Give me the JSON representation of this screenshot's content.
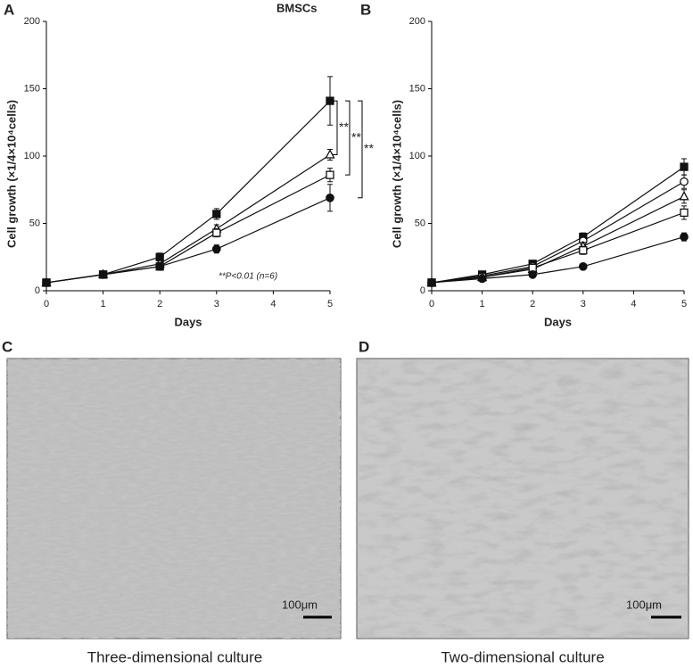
{
  "chart_data": [
    {
      "type": "line",
      "panel_label": "A",
      "title": "BMSCs",
      "x_label": "Days",
      "y_label": "Cell growth (×1/4×10⁴cells)",
      "x": [
        0,
        1,
        2,
        3,
        5
      ],
      "xlim": [
        0,
        5
      ],
      "xticks": [
        0,
        1,
        2,
        3,
        4,
        5
      ],
      "ylim": [
        0,
        200
      ],
      "yticks": [
        0,
        50,
        100,
        150,
        200
      ],
      "series": [
        {
          "marker": "square-filled",
          "color": "#111111",
          "values": [
            6,
            12,
            25,
            57,
            141
          ],
          "errors": [
            1,
            1,
            3,
            4,
            18
          ]
        },
        {
          "marker": "triangle-open",
          "color": "#111111",
          "values": [
            6,
            12,
            20,
            46,
            101
          ],
          "errors": [
            1,
            1,
            2,
            3,
            4
          ]
        },
        {
          "marker": "square-open",
          "color": "#111111",
          "values": [
            6,
            12,
            18,
            43,
            86
          ],
          "errors": [
            1,
            1,
            2,
            3,
            5
          ]
        },
        {
          "marker": "circle-filled",
          "color": "#111111",
          "values": [
            6,
            12,
            18,
            31,
            69
          ],
          "errors": [
            1,
            1,
            2,
            3,
            10
          ]
        }
      ],
      "significance": [
        "**",
        "**",
        "**"
      ],
      "annotation": "**P<0.01 (n=6)"
    },
    {
      "type": "line",
      "panel_label": "B",
      "x_label": "Days",
      "y_label": "Cell growth (×1/4×10⁴cells)",
      "x": [
        0,
        1,
        2,
        3,
        5
      ],
      "xlim": [
        0,
        5
      ],
      "xticks": [
        0,
        1,
        2,
        3,
        4,
        5
      ],
      "ylim": [
        0,
        200
      ],
      "yticks": [
        0,
        50,
        100,
        150,
        200
      ],
      "series": [
        {
          "marker": "square-filled",
          "color": "#111111",
          "values": [
            6,
            12,
            20,
            40,
            92
          ],
          "errors": [
            1,
            1,
            2,
            3,
            6
          ]
        },
        {
          "marker": "circle-open",
          "color": "#111111",
          "values": [
            6,
            11,
            18,
            37,
            81
          ],
          "errors": [
            1,
            1,
            2,
            3,
            5
          ]
        },
        {
          "marker": "triangle-open",
          "color": "#111111",
          "values": [
            6,
            10,
            16,
            33,
            70
          ],
          "errors": [
            1,
            1,
            2,
            3,
            5
          ]
        },
        {
          "marker": "square-open",
          "color": "#111111",
          "values": [
            6,
            10,
            17,
            30,
            58
          ],
          "errors": [
            1,
            1,
            2,
            3,
            5
          ]
        },
        {
          "marker": "circle-filled",
          "color": "#111111",
          "values": [
            6,
            9,
            12,
            18,
            40
          ],
          "errors": [
            1,
            1,
            1,
            2,
            3
          ]
        }
      ]
    }
  ],
  "images": [
    {
      "panel_label": "C",
      "scale_bar": "100μm",
      "caption": "Three-dimensional culture"
    },
    {
      "panel_label": "D",
      "scale_bar": "100μm",
      "caption": "Two-dimensional culture"
    }
  ]
}
